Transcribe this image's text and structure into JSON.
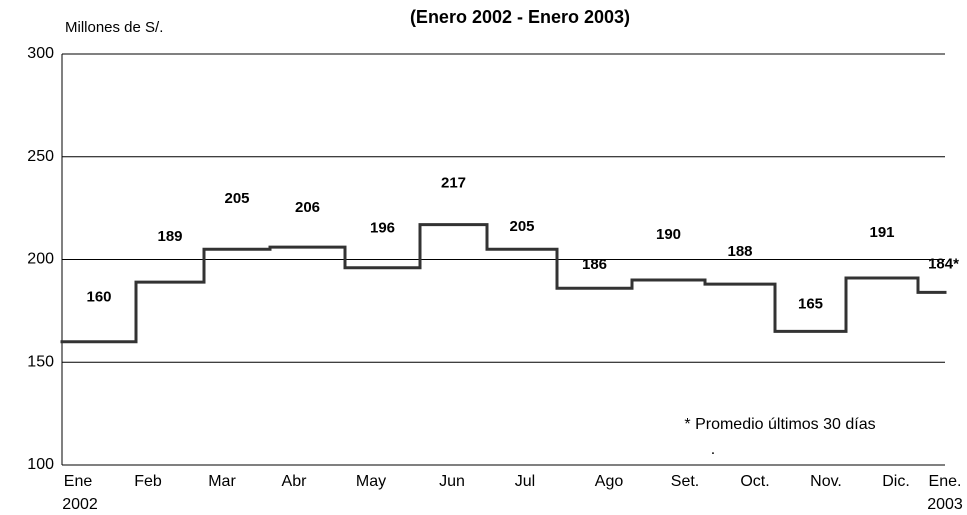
{
  "chart_data": {
    "type": "step",
    "title": "(Enero 2002 - Enero 2003)",
    "y_label": "Millones de S/.",
    "categories": [
      "Ene",
      "Feb",
      "Mar",
      "Abr",
      "May",
      "Jun",
      "Jul",
      "Ago",
      "Set.",
      "Oct.",
      "Nov.",
      "Dic.",
      "Ene."
    ],
    "year_labels": [
      "2002",
      "2003"
    ],
    "values": [
      160,
      189,
      205,
      206,
      196,
      217,
      205,
      186,
      190,
      188,
      165,
      191,
      184
    ],
    "value_labels": [
      "160",
      "189",
      "205",
      "206",
      "196",
      "217",
      "205",
      "186",
      "190",
      "188",
      "165",
      "191",
      "184*"
    ],
    "color": "#333333",
    "ylim": [
      100,
      300
    ],
    "yticks": [
      100,
      150,
      200,
      250,
      300
    ],
    "grid": true,
    "annotations": [
      "* Promedio últimos 30 días",
      "."
    ]
  }
}
